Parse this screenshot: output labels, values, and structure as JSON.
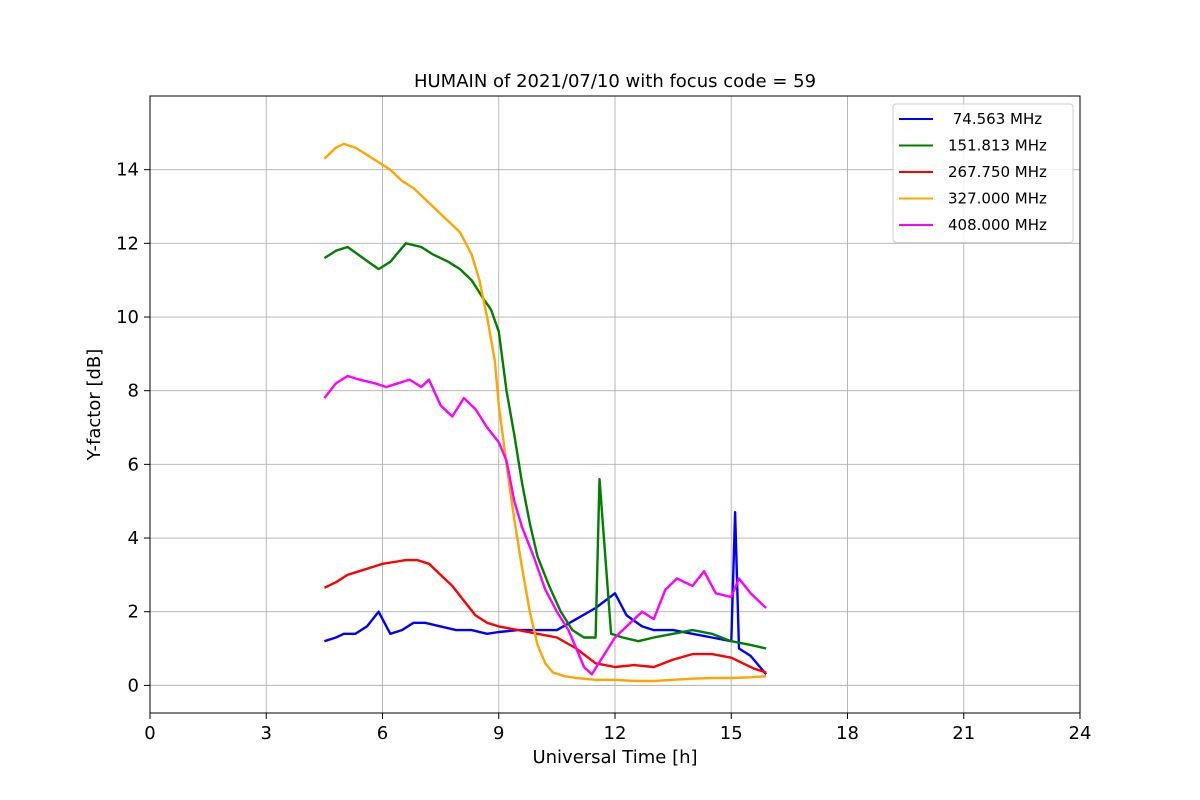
{
  "chart_data": {
    "type": "line",
    "title": "HUMAIN of 2021/07/10 with focus code = 59",
    "xlabel": "Universal Time [h]",
    "ylabel": "Y-factor [dB]",
    "xlim": [
      0,
      24
    ],
    "ylim": [
      -0.75,
      16
    ],
    "xticks": [
      0,
      3,
      6,
      9,
      12,
      15,
      18,
      21,
      24
    ],
    "yticks": [
      0,
      2,
      4,
      6,
      8,
      10,
      12,
      14
    ],
    "grid": true,
    "legend": "top-right",
    "series": [
      {
        "name": " 74.563 MHz",
        "color": "#0000ff",
        "x": [
          4.5,
          4.8,
          5.0,
          5.3,
          5.6,
          5.9,
          6.2,
          6.5,
          6.8,
          7.1,
          7.5,
          7.9,
          8.3,
          8.7,
          9.0,
          9.5,
          10.0,
          10.5,
          11.0,
          11.5,
          12.0,
          12.3,
          12.7,
          13.0,
          13.5,
          14.0,
          14.5,
          15.0,
          15.1,
          15.2,
          15.5,
          15.9
        ],
        "y": [
          1.2,
          1.3,
          1.4,
          1.4,
          1.6,
          2.0,
          1.4,
          1.5,
          1.7,
          1.7,
          1.6,
          1.5,
          1.5,
          1.4,
          1.45,
          1.5,
          1.5,
          1.5,
          1.8,
          2.1,
          2.5,
          1.9,
          1.6,
          1.5,
          1.5,
          1.4,
          1.3,
          1.2,
          4.7,
          1.0,
          0.8,
          0.3
        ]
      },
      {
        "name": "151.813 MHz",
        "color": "#008000",
        "x": [
          4.5,
          4.8,
          5.1,
          5.5,
          5.9,
          6.2,
          6.6,
          7.0,
          7.3,
          7.7,
          8.0,
          8.3,
          8.6,
          8.8,
          9.0,
          9.2,
          9.4,
          9.6,
          9.8,
          10.0,
          10.3,
          10.6,
          10.9,
          11.2,
          11.5,
          11.6,
          11.9,
          12.2,
          12.6,
          13.0,
          13.5,
          14.0,
          14.5,
          15.0,
          15.5,
          15.9
        ],
        "y": [
          11.6,
          11.8,
          11.9,
          11.6,
          11.3,
          11.5,
          12.0,
          11.9,
          11.7,
          11.5,
          11.3,
          11.0,
          10.5,
          10.2,
          9.6,
          8.0,
          6.8,
          5.5,
          4.4,
          3.5,
          2.7,
          2.0,
          1.5,
          1.3,
          1.3,
          5.6,
          1.4,
          1.3,
          1.2,
          1.3,
          1.4,
          1.5,
          1.4,
          1.2,
          1.1,
          1.0
        ]
      },
      {
        "name": "267.750 MHz",
        "color": "#ff0000",
        "x": [
          4.5,
          4.8,
          5.1,
          5.4,
          5.7,
          6.0,
          6.3,
          6.6,
          6.9,
          7.2,
          7.5,
          7.8,
          8.1,
          8.4,
          8.7,
          9.0,
          9.5,
          10.0,
          10.5,
          11.0,
          11.5,
          12.0,
          12.5,
          13.0,
          13.5,
          14.0,
          14.5,
          15.0,
          15.3,
          15.6,
          15.9
        ],
        "y": [
          2.65,
          2.8,
          3.0,
          3.1,
          3.2,
          3.3,
          3.35,
          3.4,
          3.4,
          3.3,
          3.0,
          2.7,
          2.3,
          1.9,
          1.7,
          1.6,
          1.5,
          1.4,
          1.3,
          1.0,
          0.6,
          0.5,
          0.55,
          0.5,
          0.7,
          0.85,
          0.85,
          0.75,
          0.6,
          0.45,
          0.35
        ]
      },
      {
        "name": "327.000 MHz",
        "color": "#ffa500",
        "x": [
          4.5,
          4.8,
          5.0,
          5.3,
          5.6,
          5.9,
          6.2,
          6.5,
          6.8,
          7.1,
          7.4,
          7.7,
          8.0,
          8.3,
          8.5,
          8.7,
          8.9,
          9.0,
          9.2,
          9.4,
          9.6,
          9.8,
          10.0,
          10.2,
          10.4,
          10.7,
          11.0,
          11.5,
          12.0,
          12.5,
          13.0,
          13.5,
          14.0,
          14.5,
          15.0,
          15.5,
          15.9
        ],
        "y": [
          14.3,
          14.6,
          14.7,
          14.6,
          14.4,
          14.2,
          14.0,
          13.7,
          13.5,
          13.2,
          12.9,
          12.6,
          12.3,
          11.7,
          11.0,
          10.0,
          8.8,
          7.6,
          6.0,
          4.5,
          3.2,
          2.0,
          1.1,
          0.6,
          0.35,
          0.25,
          0.2,
          0.15,
          0.15,
          0.12,
          0.12,
          0.15,
          0.18,
          0.2,
          0.2,
          0.22,
          0.25
        ]
      },
      {
        "name": "408.000 MHz",
        "color": "#ff00ff",
        "x": [
          4.5,
          4.8,
          5.1,
          5.4,
          5.8,
          6.1,
          6.4,
          6.7,
          7.0,
          7.2,
          7.5,
          7.8,
          8.1,
          8.4,
          8.7,
          9.0,
          9.2,
          9.4,
          9.6,
          9.9,
          10.2,
          10.5,
          10.8,
          11.0,
          11.2,
          11.4,
          11.7,
          12.0,
          12.3,
          12.7,
          13.0,
          13.3,
          13.6,
          14.0,
          14.3,
          14.6,
          15.0,
          15.2,
          15.5,
          15.9
        ],
        "y": [
          7.8,
          8.2,
          8.4,
          8.3,
          8.2,
          8.1,
          8.2,
          8.3,
          8.1,
          8.3,
          7.6,
          7.3,
          7.8,
          7.5,
          7.0,
          6.6,
          6.1,
          5.0,
          4.3,
          3.5,
          2.6,
          2.0,
          1.5,
          1.0,
          0.5,
          0.3,
          0.8,
          1.3,
          1.6,
          2.0,
          1.8,
          2.6,
          2.9,
          2.7,
          3.1,
          2.5,
          2.4,
          2.9,
          2.5,
          2.1
        ]
      }
    ]
  }
}
